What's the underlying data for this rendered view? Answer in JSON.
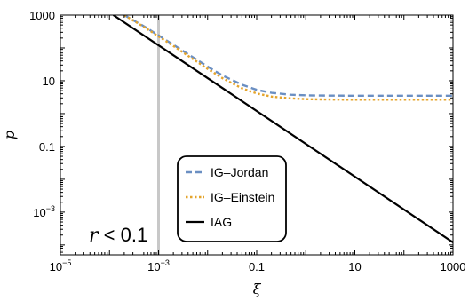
{
  "chart_data": {
    "type": "line",
    "xscale": "log",
    "yscale": "log",
    "xlabel": "ξ",
    "ylabel": "p",
    "xlim": [
      1e-05,
      1000
    ],
    "ylim": [
      5e-05,
      1000
    ],
    "x_ticks": [
      {
        "value": 1e-05,
        "base": "10",
        "exp": "−5"
      },
      {
        "value": 0.001,
        "base": "10",
        "exp": "−3"
      },
      {
        "value": 0.1,
        "base": "0.1",
        "exp": ""
      },
      {
        "value": 10,
        "base": "10",
        "exp": ""
      },
      {
        "value": 1000,
        "base": "1000",
        "exp": ""
      }
    ],
    "y_ticks": [
      {
        "value": 0.001,
        "base": "10",
        "exp": "−3"
      },
      {
        "value": 0.1,
        "base": "0.1",
        "exp": ""
      },
      {
        "value": 10,
        "base": "10",
        "exp": ""
      },
      {
        "value": 1000,
        "base": "1000",
        "exp": ""
      }
    ],
    "vline": {
      "x": 0.001,
      "color": "#c8c8c8"
    },
    "annotation": {
      "symbol": "r",
      "rest": " < 0.1"
    },
    "legend": {
      "placement": "center-bottom"
    },
    "series": [
      {
        "name": "IG–Jordan",
        "style": "dashed",
        "color": "#6b8fc2",
        "x": [
          0.0002,
          0.0005,
          0.001,
          0.002,
          0.005,
          0.01,
          0.02,
          0.05,
          0.1,
          0.2,
          0.5,
          1,
          2,
          5,
          10,
          100,
          1000
        ],
        "y": [
          1000,
          460,
          240,
          125,
          52,
          27,
          14.5,
          7.6,
          5.3,
          4.3,
          3.75,
          3.6,
          3.55,
          3.52,
          3.5,
          3.5,
          3.5
        ]
      },
      {
        "name": "IG–Einstein",
        "style": "dotted",
        "color": "#e4a42c",
        "x": [
          0.0002,
          0.0005,
          0.001,
          0.002,
          0.005,
          0.01,
          0.02,
          0.05,
          0.1,
          0.2,
          0.5,
          1,
          2,
          5,
          10,
          100,
          1000
        ],
        "y": [
          1000,
          440,
          225,
          115,
          46,
          23,
          12,
          5.9,
          4.1,
          3.3,
          2.9,
          2.75,
          2.7,
          2.66,
          2.65,
          2.65,
          2.65
        ]
      },
      {
        "name": "IAG",
        "style": "solid",
        "color": "#000000",
        "x": [
          0.00012,
          1000
        ],
        "y": [
          1000,
          0.00012
        ]
      }
    ]
  }
}
